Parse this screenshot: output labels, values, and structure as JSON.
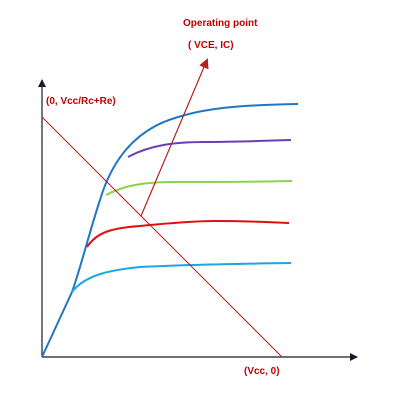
{
  "diagram": {
    "op_point_label": "Operating point",
    "op_point_coords": "( VCE, IC)",
    "y_intercept_label": "(0, Vcc/Rc+Re)",
    "x_intercept_label": "(Vcc, 0)"
  },
  "colors": {
    "axes": "#1a1a2e",
    "load_line": "#b22222",
    "labels": "#c00000",
    "arrow": "#b22222",
    "curve_1": "#1f77c4",
    "curve_2": "#6a3fb5",
    "curve_3": "#8fd14f",
    "curve_4": "#e01010",
    "curve_5": "#1ba8e0"
  }
}
